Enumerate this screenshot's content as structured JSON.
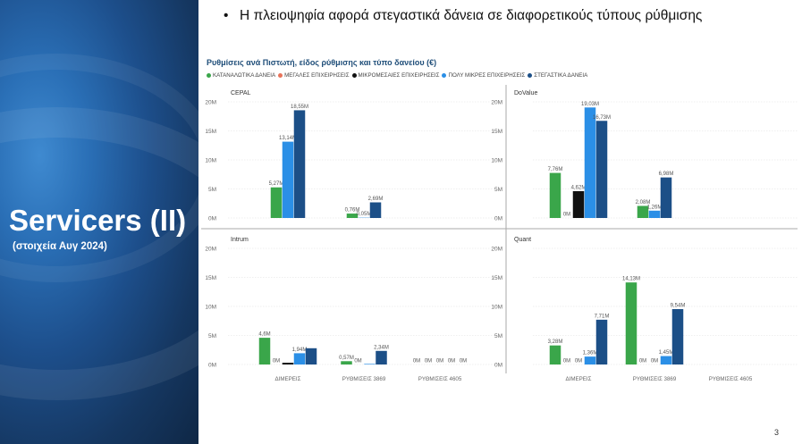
{
  "slide": {
    "title": "Servicers (II)",
    "subtitle": "(στοιχεία Αυγ 2024)",
    "bullet_marker": "•",
    "bullet": "Η πλειοψηφία αφορά στεγαστικά δάνεια σε διαφορετικούς τύπους ρύθμισης",
    "page_number": "3"
  },
  "report": {
    "title": "Ρυθμίσεις ανά Πιστωτή, είδος ρύθμισης και τύπο δανείου (€)"
  },
  "chart_data": {
    "type": "bar",
    "title": "Ρυθμίσεις ανά Πιστωτή, είδος ρύθμισης και τύπο δανείου (€)",
    "legend_position": "top-left",
    "grid": true,
    "y_ticks": [
      "20M",
      "15M",
      "10M",
      "5M",
      "0M"
    ],
    "ylim": [
      0,
      20
    ],
    "categories": [
      "ΔΙΜΕΡΕΙΣ",
      "ΡΥΘΜΙΣΕΙΣ 3869",
      "ΡΥΘΜΙΣΕΙΣ 4605"
    ],
    "series": [
      {
        "name": "ΚΑΤΑΝΑΛΩΤΙΚΑ ΔΑΝΕΙΑ",
        "color": "#3aa64a"
      },
      {
        "name": "ΜΕΓΑΛΕΣ ΕΠΙΧΕΙΡΗΣΕΙΣ",
        "color": "#e8735a"
      },
      {
        "name": "ΜΙΚΡΟΜΕΣΑΙΕΣ ΕΠΙΧΕΙΡΗΣΕΙΣ",
        "color": "#111111"
      },
      {
        "name": "ΠΟΛΥ ΜΙΚΡΕΣ ΕΠΙΧΕΙΡΗΣΕΙΣ",
        "color": "#2b8fe6"
      },
      {
        "name": "ΣΤΕΓΑΣΤΙΚΑ ΔΑΝΕΙΑ",
        "color": "#1c4f87"
      }
    ],
    "panels": [
      {
        "name": "CEPAL",
        "bars": [
          [
            {
              "s": 0,
              "v": 5.27,
              "label": "5,27M"
            },
            {
              "s": 3,
              "v": 13.14,
              "label": "13,14M"
            },
            {
              "s": 4,
              "v": 18.55,
              "label": "18,55M"
            }
          ],
          [
            {
              "s": 0,
              "v": 0.76,
              "label": "0,76M"
            },
            {
              "s": 3,
              "v": 0.05,
              "label": "0,05M"
            },
            {
              "s": 4,
              "v": 2.69,
              "label": "2,69M"
            }
          ],
          []
        ]
      },
      {
        "name": "DoValue",
        "bars": [
          [
            {
              "s": 0,
              "v": 7.76,
              "label": "7,76M"
            },
            {
              "s": 1,
              "v": 0,
              "label": "0M"
            },
            {
              "s": 2,
              "v": 4.62,
              "label": "4,62M"
            },
            {
              "s": 3,
              "v": 19.03,
              "label": "19,03M"
            },
            {
              "s": 4,
              "v": 16.73,
              "label": "16,73M"
            }
          ],
          [
            {
              "s": 0,
              "v": 2.08,
              "label": "2,08M"
            },
            {
              "s": 3,
              "v": 1.26,
              "label": "1,26M"
            },
            {
              "s": 4,
              "v": 6.98,
              "label": "6,98M"
            }
          ],
          []
        ]
      },
      {
        "name": "Intrum",
        "bars": [
          [
            {
              "s": 0,
              "v": 4.6,
              "label": "4,6M"
            },
            {
              "s": 1,
              "v": 0,
              "label": "0M"
            },
            {
              "s": 2,
              "v": 0.3,
              "label": ""
            },
            {
              "s": 3,
              "v": 1.94,
              "label": "1,94M"
            },
            {
              "s": 4,
              "v": 2.8,
              "label": ""
            }
          ],
          [
            {
              "s": 0,
              "v": 0.57,
              "label": "0,57M"
            },
            {
              "s": 1,
              "v": 0,
              "label": "0M"
            },
            {
              "s": 3,
              "v": 0.1,
              "label": ""
            },
            {
              "s": 4,
              "v": 2.34,
              "label": "2,34M"
            }
          ],
          [
            {
              "s": 0,
              "v": 0,
              "label": "0M"
            },
            {
              "s": 1,
              "v": 0,
              "label": "0M"
            },
            {
              "s": 2,
              "v": 0,
              "label": "0M"
            },
            {
              "s": 3,
              "v": 0,
              "label": "0M"
            },
            {
              "s": 4,
              "v": 0,
              "label": "0M"
            }
          ]
        ]
      },
      {
        "name": "Quant",
        "bars": [
          [
            {
              "s": 0,
              "v": 3.28,
              "label": "3,28M"
            },
            {
              "s": 1,
              "v": 0,
              "label": "0M"
            },
            {
              "s": 2,
              "v": 0,
              "label": "0M"
            },
            {
              "s": 3,
              "v": 1.36,
              "label": "1,36M"
            },
            {
              "s": 4,
              "v": 7.71,
              "label": "7,71M"
            }
          ],
          [
            {
              "s": 0,
              "v": 14.13,
              "label": "14,13M"
            },
            {
              "s": 1,
              "v": 0,
              "label": "0M"
            },
            {
              "s": 2,
              "v": 0,
              "label": "0M"
            },
            {
              "s": 3,
              "v": 1.45,
              "label": "1,45M"
            },
            {
              "s": 4,
              "v": 9.54,
              "label": "9,54M"
            }
          ],
          []
        ]
      }
    ]
  }
}
